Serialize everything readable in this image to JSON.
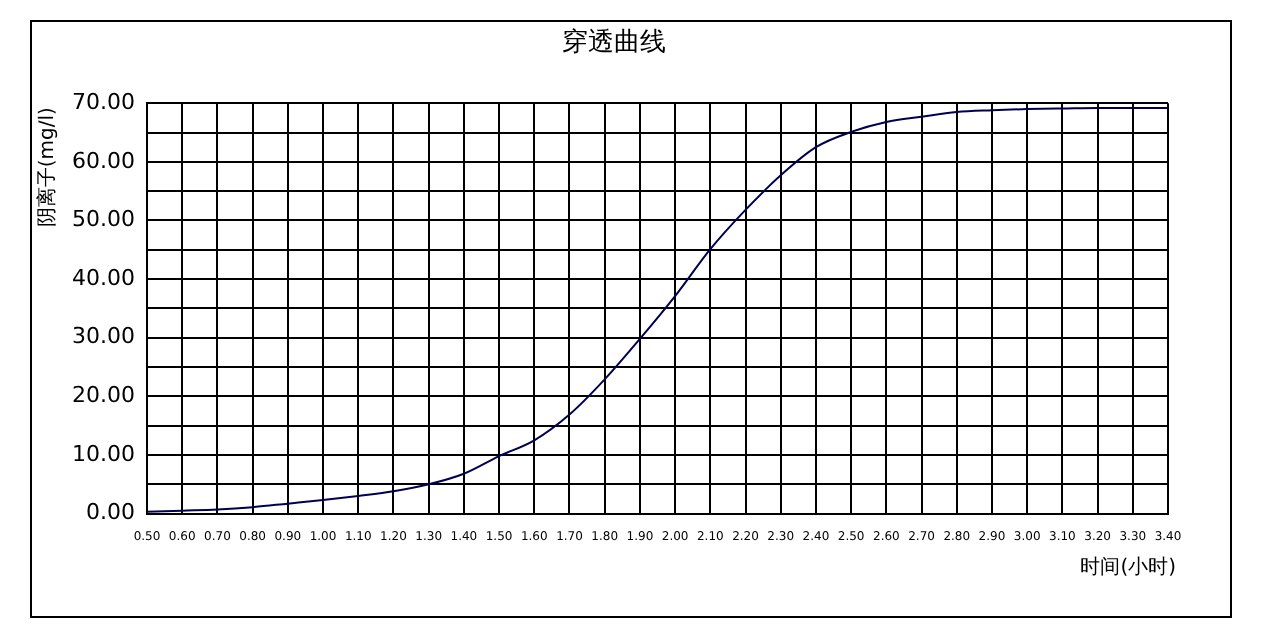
{
  "chart_data": {
    "type": "line",
    "title": "穿透曲线",
    "xlabel": "时间(小时)",
    "ylabel": "阴离子(mg/l)",
    "categories": [
      "0.50",
      "0.60",
      "0.70",
      "0.80",
      "0.90",
      "1.00",
      "1.10",
      "1.20",
      "1.30",
      "1.40",
      "1.50",
      "1.60",
      "1.70",
      "1.80",
      "1.90",
      "2.00",
      "2.10",
      "2.20",
      "2.30",
      "2.40",
      "2.50",
      "2.60",
      "2.70",
      "2.80",
      "2.90",
      "3.00",
      "3.10",
      "3.20",
      "3.30",
      "3.40"
    ],
    "series": [
      {
        "color": "#000050",
        "values": [
          0.3,
          0.5,
          0.7,
          1.1,
          1.7,
          2.3,
          3.0,
          3.8,
          5.0,
          6.8,
          9.8,
          12.5,
          16.9,
          22.9,
          29.8,
          37.1,
          45.1,
          51.8,
          57.7,
          62.5,
          65.1,
          66.8,
          67.7,
          68.5,
          68.8,
          69.0,
          69.1,
          69.2,
          69.2,
          69.2
        ]
      }
    ],
    "ylim": [
      0,
      70
    ],
    "yticks": [
      {
        "value": 0,
        "label": "0.00"
      },
      {
        "value": 5,
        "label": null
      },
      {
        "value": 10,
        "label": "10.00"
      },
      {
        "value": 15,
        "label": null
      },
      {
        "value": 20,
        "label": "20.00"
      },
      {
        "value": 25,
        "label": null
      },
      {
        "value": 30,
        "label": "30.00"
      },
      {
        "value": 35,
        "label": null
      },
      {
        "value": 40,
        "label": "40.00"
      },
      {
        "value": 45,
        "label": null
      },
      {
        "value": 50,
        "label": "50.00"
      },
      {
        "value": 55,
        "label": null
      },
      {
        "value": 60,
        "label": "60.00"
      },
      {
        "value": 65,
        "label": null
      },
      {
        "value": 70,
        "label": "70.00"
      }
    ],
    "grid": true,
    "legend": false,
    "marker": "none",
    "line_style": "solid"
  }
}
